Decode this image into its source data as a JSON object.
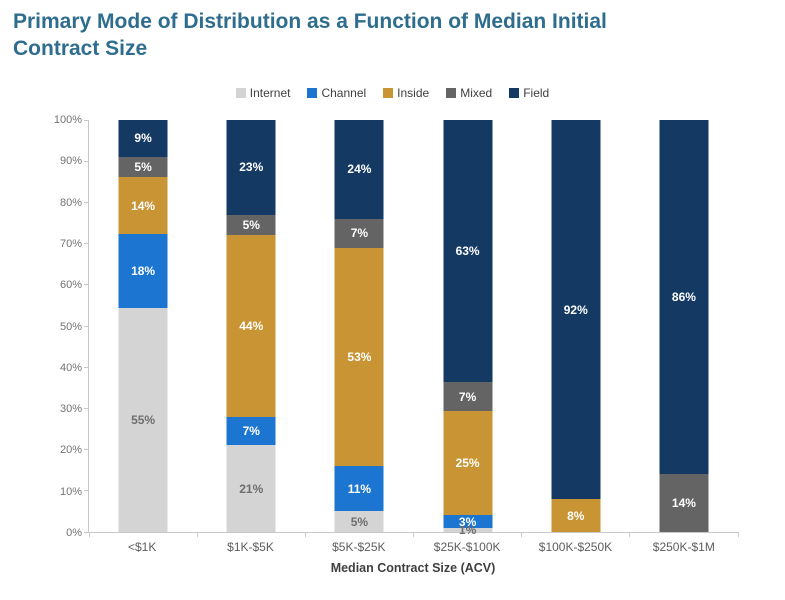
{
  "title": {
    "line1": "Primary Mode of Distribution as a Function of Median Initial",
    "line2": "Contract Size"
  },
  "legend": [
    {
      "label": "Internet",
      "color": "#D4D4D4"
    },
    {
      "label": "Channel",
      "color": "#1B75D1"
    },
    {
      "label": "Inside",
      "color": "#C99433"
    },
    {
      "label": "Mixed",
      "color": "#646464"
    },
    {
      "label": "Field",
      "color": "#143A64"
    }
  ],
  "axes": {
    "y_ticks": [
      "100%",
      "90%",
      "80%",
      "70%",
      "60%",
      "50%",
      "40%",
      "30%",
      "20%",
      "10%",
      "0%"
    ],
    "x_label": "Median Contract Size (ACV)"
  },
  "colors": {
    "title": "#2E6D8E",
    "axis_line": "#C9C9C9",
    "y_tick_text": "#737373",
    "x_tick_text": "#5E5E5E",
    "internet_label_text": "#6E6E6E",
    "segment_label_text": "#FFFFFF"
  },
  "chart_data": {
    "type": "bar",
    "stacked": true,
    "percent_stacked": true,
    "title": "Primary Mode of Distribution as a Function of Median Initial Contract Size",
    "xlabel": "Median Contract Size (ACV)",
    "ylabel": "",
    "ylim": [
      0,
      100
    ],
    "grid": false,
    "legend_position": "top",
    "categories": [
      "<$1K",
      "$1K-$5K",
      "$5K-$25K",
      "$25K-$100K",
      "$100K-$250K",
      "$250K-$1M"
    ],
    "series": [
      {
        "name": "Internet",
        "color": "#D4D4D4",
        "label_color": "#6E6E6E",
        "values": [
          55,
          21,
          5,
          1,
          0,
          0
        ]
      },
      {
        "name": "Channel",
        "color": "#1B75D1",
        "label_color": "#FFFFFF",
        "values": [
          18,
          7,
          11,
          3,
          0,
          0
        ]
      },
      {
        "name": "Inside",
        "color": "#C99433",
        "label_color": "#FFFFFF",
        "values": [
          14,
          44,
          53,
          25,
          8,
          0
        ]
      },
      {
        "name": "Mixed",
        "color": "#646464",
        "label_color": "#FFFFFF",
        "values": [
          5,
          5,
          7,
          7,
          0,
          14
        ]
      },
      {
        "name": "Field",
        "color": "#143A64",
        "label_color": "#FFFFFF",
        "values": [
          9,
          23,
          24,
          63,
          92,
          86
        ]
      }
    ]
  }
}
